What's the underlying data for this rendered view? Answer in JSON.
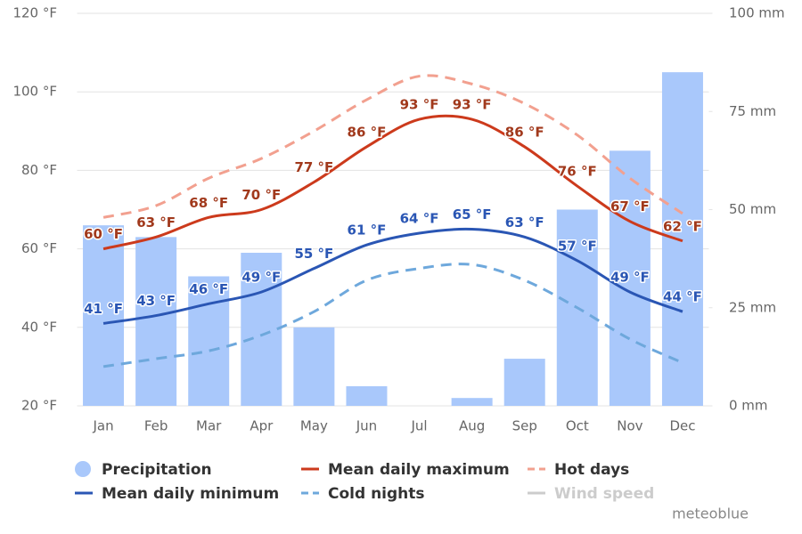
{
  "chart_data": {
    "type": "climate",
    "categories": [
      "Jan",
      "Feb",
      "Mar",
      "Apr",
      "May",
      "Jun",
      "Jul",
      "Aug",
      "Sep",
      "Oct",
      "Nov",
      "Dec"
    ],
    "series": [
      {
        "name": "Precipitation",
        "type": "bar",
        "axis": "y2",
        "color": "#a9c8fb",
        "values": [
          46,
          43,
          33,
          39,
          20,
          5,
          0,
          2,
          12,
          50,
          65,
          85
        ]
      },
      {
        "name": "Mean daily maximum",
        "type": "line",
        "color": "#cc3a1c",
        "label_color": "#a1391c",
        "values": [
          60,
          63,
          68,
          70,
          77,
          86,
          93,
          93,
          86,
          76,
          67,
          62
        ],
        "value_labels": [
          "60 °F",
          "63 °F",
          "68 °F",
          "70 °F",
          "77 °F",
          "86 °F",
          "93 °F",
          "93 °F",
          "86 °F",
          "76 °F",
          "67 °F",
          "62 °F"
        ]
      },
      {
        "name": "Hot days",
        "type": "dashed",
        "color": "#f2a08f",
        "values": [
          68,
          71,
          78,
          83,
          90,
          98,
          104,
          102,
          97,
          89,
          78,
          69
        ]
      },
      {
        "name": "Mean daily minimum",
        "type": "line",
        "color": "#2a56b4",
        "label_color": "#2a56b4",
        "values": [
          41,
          43,
          46,
          49,
          55,
          61,
          64,
          65,
          63,
          57,
          49,
          44
        ],
        "value_labels": [
          "41 °F",
          "43 °F",
          "46 °F",
          "49 °F",
          "55 °F",
          "61 °F",
          "64 °F",
          "65 °F",
          "63 °F",
          "57 °F",
          "49 °F",
          "44 °F"
        ]
      },
      {
        "name": "Cold nights",
        "type": "dashed",
        "color": "#6ea8dc",
        "values": [
          30,
          32,
          34,
          38,
          44,
          52,
          55,
          56,
          52,
          45,
          37,
          31
        ]
      }
    ],
    "hidden_series": [
      {
        "name": "Wind speed",
        "color": "#cccccc"
      }
    ],
    "ylim": [
      20,
      120
    ],
    "yticks": [
      {
        "value": 20,
        "label": "20 °F"
      },
      {
        "value": 40,
        "label": "40 °F"
      },
      {
        "value": 60,
        "label": "60 °F"
      },
      {
        "value": 80,
        "label": "80 °F"
      },
      {
        "value": 100,
        "label": "100 °F"
      },
      {
        "value": 120,
        "label": "120 °F"
      }
    ],
    "y2lim": [
      0,
      100
    ],
    "y2ticks": [
      {
        "value": 0,
        "label": "0 mm"
      },
      {
        "value": 25,
        "label": "25 mm"
      },
      {
        "value": 50,
        "label": "50 mm"
      },
      {
        "value": 75,
        "label": "75 mm"
      },
      {
        "value": 100,
        "label": "100 mm"
      }
    ],
    "grid": true,
    "credit": "meteoblue"
  }
}
